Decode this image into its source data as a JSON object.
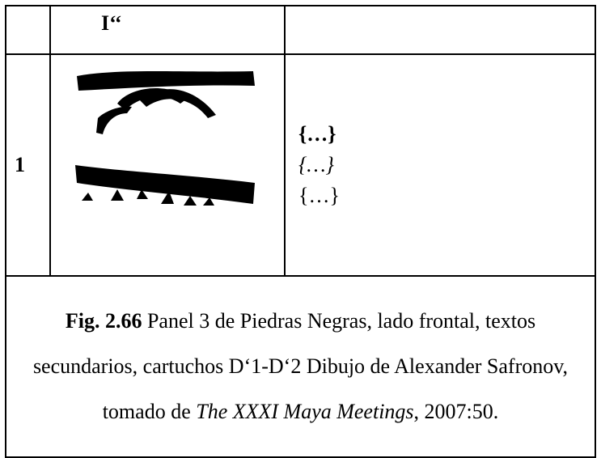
{
  "table": {
    "header": [
      "",
      "I‘‘",
      ""
    ],
    "rows": [
      [
        "1",
        "",
        [
          "{…}",
          "{…}",
          "{…}"
        ]
      ]
    ]
  },
  "caption": {
    "label": "Fig. 2.66",
    "text": " Panel 3 de Piedras Negras, lado frontal, textos secundarios, cartuchos D‘1-D‘2 Dibujo de Alexander Safronov, tomado de ",
    "title": "The XXXI Maya Meetings",
    "suffix": ", 2007:50."
  }
}
